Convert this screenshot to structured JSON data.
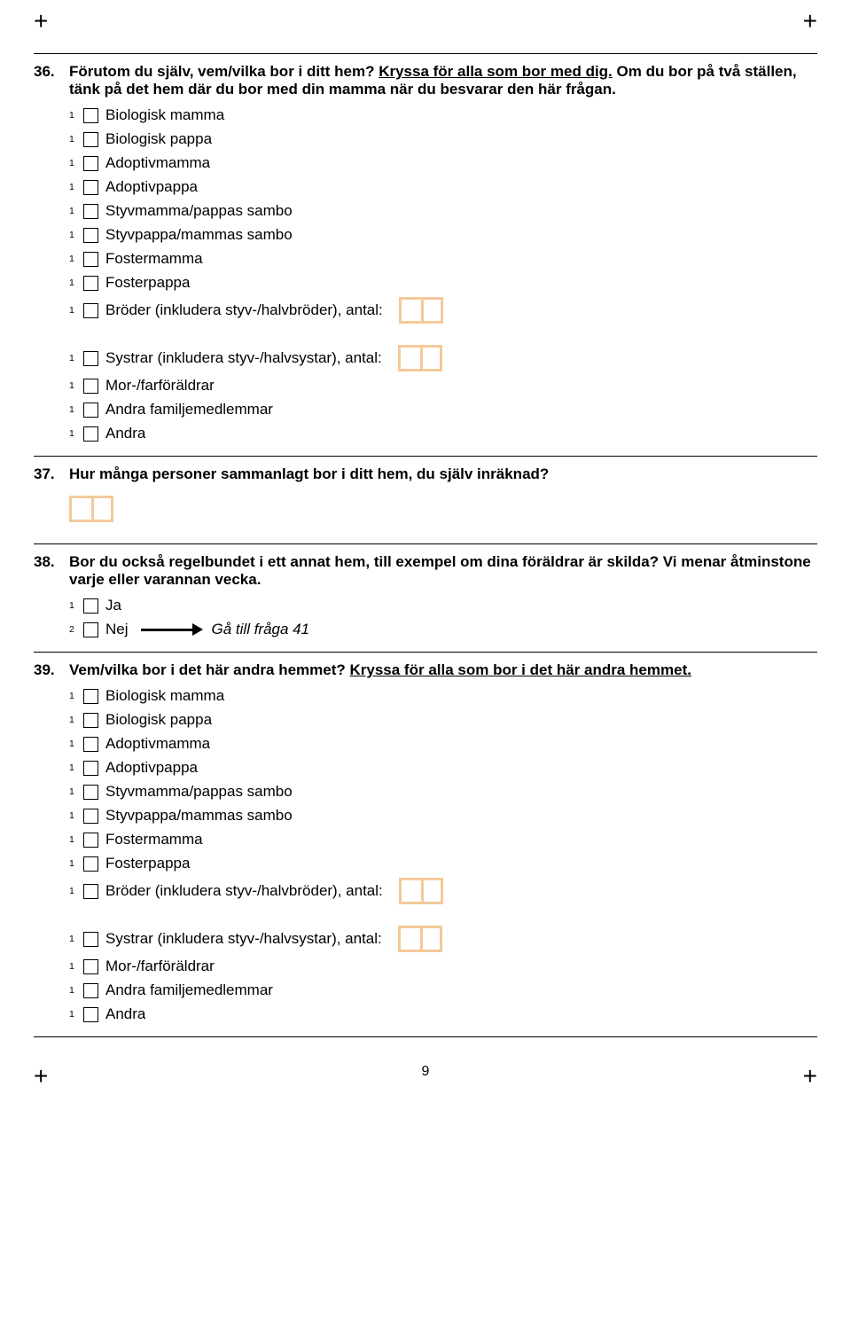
{
  "page_number": "9",
  "box_border_color": "#f4c99a",
  "q36": {
    "num": "36.",
    "text_a": "Förutom du själv, vem/vilka bor i ditt hem? ",
    "text_u": "Kryssa för alla som bor med dig.",
    "text_b": " Om du bor på två ställen, tänk på det hem där du bor med din mamma när du besvarar den här frågan.",
    "options": [
      {
        "sub": "1",
        "label": "Biologisk mamma"
      },
      {
        "sub": "1",
        "label": "Biologisk pappa"
      },
      {
        "sub": "1",
        "label": "Adoptivmamma"
      },
      {
        "sub": "1",
        "label": "Adoptivpappa"
      },
      {
        "sub": "1",
        "label": "Styvmamma/pappas sambo"
      },
      {
        "sub": "1",
        "label": "Styvpappa/mammas sambo"
      },
      {
        "sub": "1",
        "label": "Fostermamma"
      },
      {
        "sub": "1",
        "label": "Fosterpappa"
      },
      {
        "sub": "1",
        "label": "Bröder (inkludera styv-/halvbröder), antal:",
        "num": true
      }
    ],
    "options2": [
      {
        "sub": "1",
        "label": "Systrar (inkludera styv-/halvsystar), antal:",
        "num": true
      },
      {
        "sub": "1",
        "label": "Mor-/farföräldrar"
      },
      {
        "sub": "1",
        "label": "Andra familjemedlemmar"
      },
      {
        "sub": "1",
        "label": "Andra"
      }
    ]
  },
  "q37": {
    "num": "37.",
    "text": "Hur många personer sammanlagt bor i ditt hem, du själv inräknad?"
  },
  "q38": {
    "num": "38.",
    "text": "Bor du också regelbundet i ett annat hem, till exempel om dina föräldrar är skilda? Vi menar åtminstone varje eller varannan vecka.",
    "opt_ja": {
      "sub": "1",
      "label": "Ja"
    },
    "opt_nej": {
      "sub": "2",
      "label": "Nej"
    },
    "goto": "Gå till fråga 41"
  },
  "q39": {
    "num": "39.",
    "text_a": "Vem/vilka bor i det här andra hemmet? ",
    "text_u": "Kryssa för alla som bor i det här andra hemmet.",
    "options": [
      {
        "sub": "1",
        "label": "Biologisk mamma"
      },
      {
        "sub": "1",
        "label": "Biologisk pappa"
      },
      {
        "sub": "1",
        "label": "Adoptivmamma"
      },
      {
        "sub": "1",
        "label": "Adoptivpappa"
      },
      {
        "sub": "1",
        "label": "Styvmamma/pappas sambo"
      },
      {
        "sub": "1",
        "label": "Styvpappa/mammas sambo"
      },
      {
        "sub": "1",
        "label": "Fostermamma"
      },
      {
        "sub": "1",
        "label": "Fosterpappa"
      },
      {
        "sub": "1",
        "label": "Bröder (inkludera styv-/halvbröder), antal:",
        "num": true
      }
    ],
    "options2": [
      {
        "sub": "1",
        "label": "Systrar (inkludera styv-/halvsystar), antal:",
        "num": true
      },
      {
        "sub": "1",
        "label": "Mor-/farföräldrar"
      },
      {
        "sub": "1",
        "label": "Andra familjemedlemmar"
      },
      {
        "sub": "1",
        "label": "Andra"
      }
    ]
  }
}
